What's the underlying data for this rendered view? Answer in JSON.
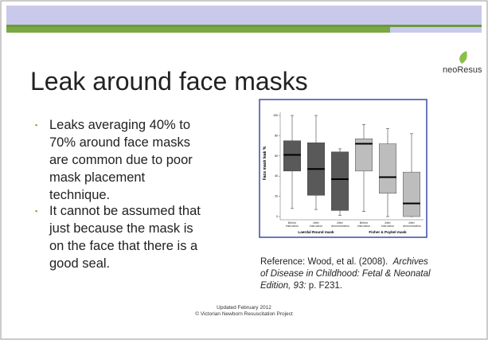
{
  "logo": "neoResus",
  "title": "Leak around face masks",
  "bullets": [
    "Leaks averaging 40% to 70% around face masks are common due to poor mask placement technique.",
    "It cannot be assumed that just because the mask is on the face that there is a good seal."
  ],
  "reference": {
    "lead": "Reference: Wood, et al. (2008).",
    "journal": "Archives of Disease in Childhood: Fetal & Neonatal Edition, 93:",
    "tail": "p. F231."
  },
  "footer": [
    "Updated February 2012",
    "© Victorian Newborn Resuscitation Project"
  ],
  "chart_data": {
    "type": "box",
    "y_label": "Face mask leak %",
    "ylim": [
      0,
      100
    ],
    "yticks": [
      0,
      20,
      40,
      60,
      80,
      100
    ],
    "series": [
      {
        "name": "Laerdal Round mask",
        "color": "#595959",
        "categories": [
          "Before instruction",
          "After instruction",
          "After demonstration"
        ],
        "boxes": [
          {
            "min": 8,
            "q1": 45,
            "median": 61,
            "q3": 75,
            "max": 100
          },
          {
            "min": 7,
            "q1": 21,
            "median": 47,
            "q3": 73,
            "max": 100
          },
          {
            "min": 1,
            "q1": 6,
            "median": 37,
            "q3": 64,
            "max": 67
          }
        ]
      },
      {
        "name": "Fisher & Paykel mask",
        "color": "#bdbdbd",
        "categories": [
          "Before instruction",
          "After instruction",
          "After demonstration"
        ],
        "boxes": [
          {
            "min": 5,
            "q1": 45,
            "median": 72,
            "q3": 77,
            "max": 91
          },
          {
            "min": 0,
            "q1": 23,
            "median": 39,
            "q3": 72,
            "max": 87
          },
          {
            "min": 0,
            "q1": 0,
            "median": 13,
            "q3": 44,
            "max": 82
          }
        ]
      }
    ]
  }
}
